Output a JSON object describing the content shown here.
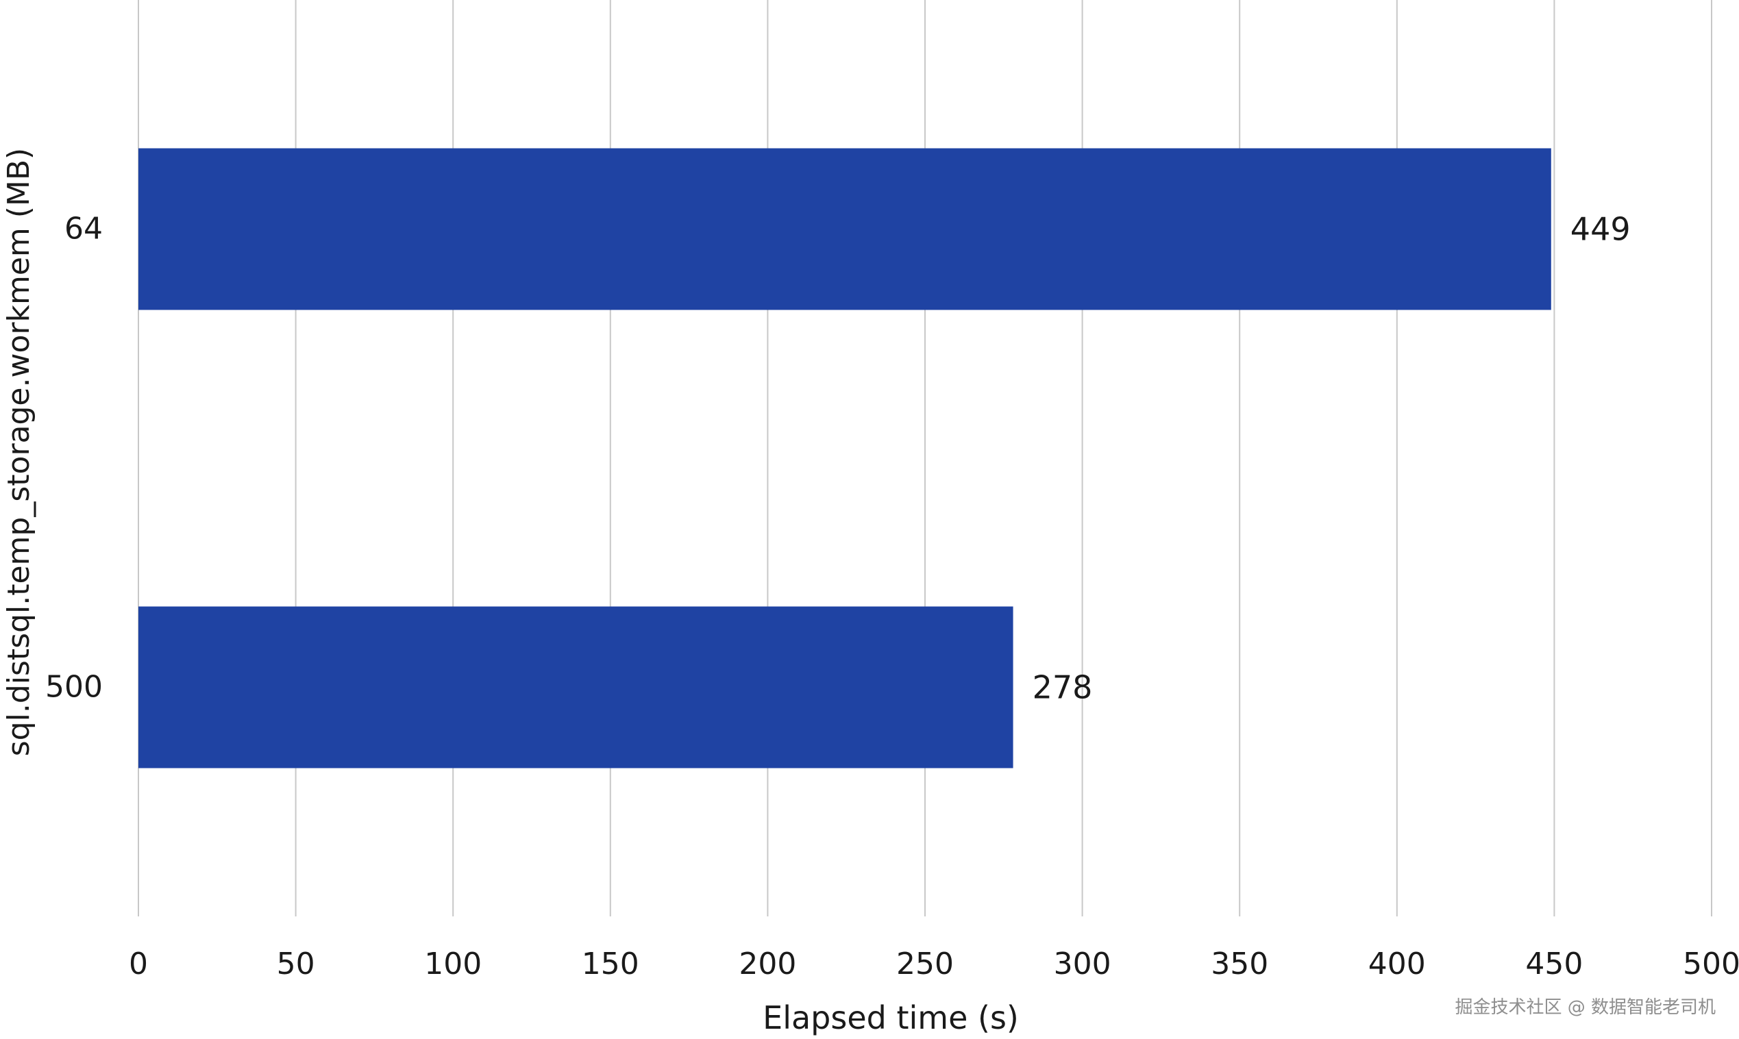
{
  "chart_data": {
    "type": "bar",
    "orientation": "horizontal",
    "title": "",
    "xlabel": "Elapsed time (s)",
    "ylabel": "sql.distsql.temp_storage.workmem (MB)",
    "categories": [
      "64",
      "500"
    ],
    "values": [
      449,
      278
    ],
    "data_labels": [
      "449",
      "278"
    ],
    "xlim": [
      0,
      500
    ],
    "x_ticks": [
      "0",
      "50",
      "100",
      "150",
      "200",
      "250",
      "300",
      "350",
      "400",
      "450",
      "500"
    ],
    "grid": "vertical",
    "legend": "none",
    "bar_color": "#1f43a3",
    "grid_color": "#c8c8c8",
    "text_color": "#1a1a1a"
  },
  "watermark": "掘金技术社区 @ 数据智能老司机"
}
